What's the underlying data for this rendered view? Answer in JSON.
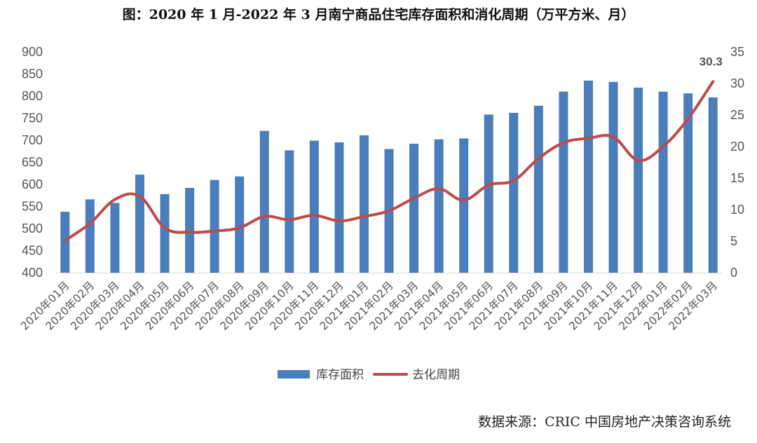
{
  "chart_data": {
    "type": "bar",
    "title": "图：2020 年 1 月-2022 年 3 月南宁商品住宅库存面积和消化周期（万平方米、月）",
    "categories": [
      "2020年01月",
      "2020年02月",
      "2020年03月",
      "2020年04月",
      "2020年05月",
      "2020年06月",
      "2020年07月",
      "2020年08月",
      "2020年09月",
      "2020年10月",
      "2020年11月",
      "2020年12月",
      "2021年01月",
      "2021年02月",
      "2021年03月",
      "2021年04月",
      "2021年05月",
      "2021年06月",
      "2021年07月",
      "2021年08月",
      "2021年09月",
      "2021年10月",
      "2021年11月",
      "2021年12月",
      "2022年01月",
      "2022年02月",
      "2022年03月"
    ],
    "series": [
      {
        "name": "库存面积",
        "type": "bar",
        "axis": "left",
        "color": "#4a7ebb",
        "values": [
          538,
          566,
          558,
          622,
          578,
          592,
          610,
          618,
          721,
          677,
          699,
          695,
          711,
          680,
          692,
          702,
          704,
          758,
          762,
          778,
          810,
          835,
          832,
          819,
          810,
          806,
          797
        ]
      },
      {
        "name": "去化周期",
        "type": "line",
        "axis": "right",
        "color": "#be4b48",
        "values": [
          5.1,
          7.8,
          11.6,
          12.1,
          7.1,
          6.4,
          6.6,
          7.1,
          8.9,
          8.4,
          9.1,
          8.2,
          8.9,
          9.8,
          11.8,
          13.3,
          11.5,
          13.9,
          14.6,
          18.1,
          20.6,
          21.3,
          21.5,
          17.8,
          20.0,
          24.4,
          30.3
        ]
      }
    ],
    "y_left": {
      "min": 400,
      "max": 900,
      "step": 50
    },
    "y_right": {
      "min": 0,
      "max": 35,
      "step": 5
    },
    "grid": false,
    "legend_position": "bottom",
    "annotations": [
      {
        "series": "去化周期",
        "index": 26,
        "text": "30.3"
      }
    ]
  },
  "source": "数据来源：CRIC 中国房地产决策咨询系统"
}
